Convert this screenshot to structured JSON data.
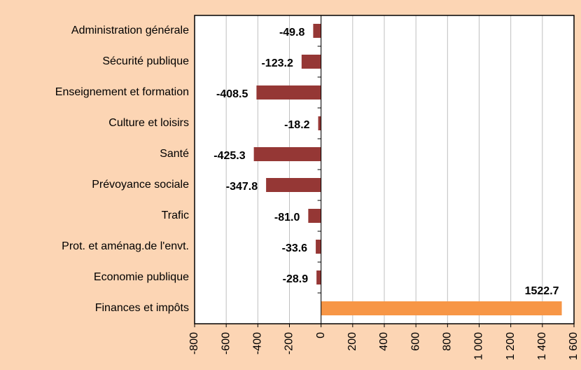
{
  "chart_data": {
    "type": "bar",
    "orientation": "horizontal",
    "categories": [
      "Administration générale",
      "Sécurité publique",
      "Enseignement et formation",
      "Culture et loisirs",
      "Santé",
      "Prévoyance sociale",
      "Trafic",
      "Prot. et aménag.de l'envt.",
      "Economie publique",
      "Finances et impôts"
    ],
    "values": [
      -49.8,
      -123.2,
      -408.5,
      -18.2,
      -425.3,
      -347.8,
      -81.0,
      -33.6,
      -28.9,
      1522.7
    ],
    "value_labels": [
      "-49.8",
      "-123.2",
      "-408.5",
      "-18.2",
      "-425.3",
      "-347.8",
      "-81.0",
      "-33.6",
      "-28.9",
      "1522.7"
    ],
    "colors": [
      "#953735",
      "#953735",
      "#953735",
      "#953735",
      "#953735",
      "#953735",
      "#953735",
      "#953735",
      "#953735",
      "#f79646"
    ],
    "xlim": [
      -800,
      1600
    ],
    "xticks": [
      -800,
      -600,
      -400,
      -200,
      0,
      200,
      400,
      600,
      800,
      {
        "value": 1000,
        "label": "1 000"
      },
      {
        "value": 1200,
        "label": "1 200"
      },
      {
        "value": 1400,
        "label": "1 400"
      },
      {
        "value": 1600,
        "label": "1 600"
      }
    ],
    "grid": true
  }
}
